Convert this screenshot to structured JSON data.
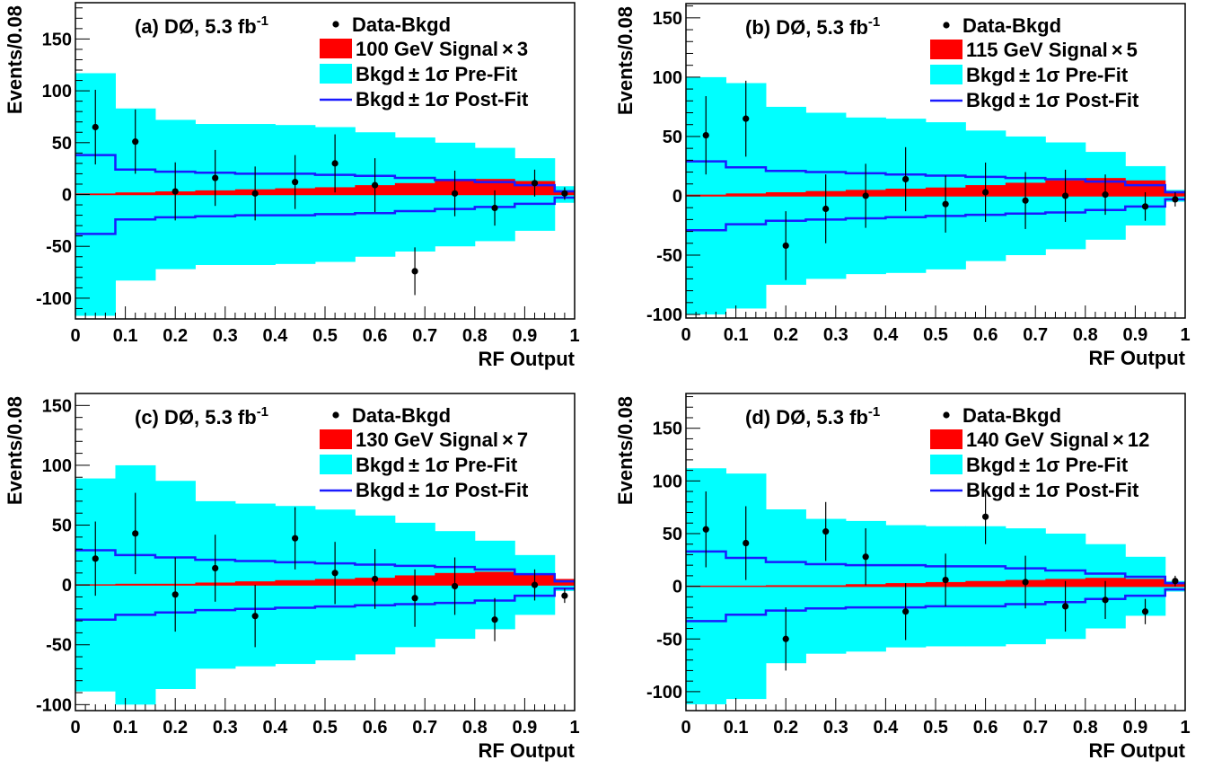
{
  "chart_data": [
    {
      "type": "bar",
      "panel_label": "(a) DØ, 5.3 fb",
      "lumi_sup": "-1",
      "xlabel": "RF Output",
      "ylabel": "Events/0.08",
      "xlim": [
        0,
        1
      ],
      "ylim": [
        -120,
        185
      ],
      "x_ticks": [
        0,
        0.1,
        0.2,
        0.3,
        0.4,
        0.5,
        0.6,
        0.7,
        0.8,
        0.9,
        1
      ],
      "x_tick_labels": [
        "0",
        "0.1",
        "0.2",
        "0.3",
        "0.4",
        "0.5",
        "0.6",
        "0.7",
        "0.8",
        "0.9",
        "1"
      ],
      "y_ticks": [
        -100,
        -50,
        0,
        50,
        100,
        150
      ],
      "y_tick_labels": [
        "-100",
        "-50",
        "0",
        "50",
        "100",
        "150"
      ],
      "legend": {
        "data": "Data-Bkgd",
        "signal": "100 GeV Signal",
        "signal_scale": "3",
        "prefit": "Bkgd",
        "prefit_suffix": "Pre-Fit",
        "postfit": "Bkgd",
        "postfit_suffix": "Post-Fit",
        "pm_sigma": "± 1σ",
        "times": "×"
      },
      "bin_edges": [
        0,
        0.08,
        0.16,
        0.24,
        0.32,
        0.4,
        0.48,
        0.56,
        0.64,
        0.72,
        0.8,
        0.88,
        0.96,
        1.0
      ],
      "prefit_band": [
        117,
        83,
        72,
        68,
        68,
        67,
        65,
        60,
        55,
        50,
        45,
        35,
        8
      ],
      "postfit_band": [
        38,
        24,
        22,
        21,
        20,
        20,
        19,
        18,
        16,
        14,
        12,
        9,
        3
      ],
      "signal": [
        1,
        2,
        3,
        4,
        5,
        6,
        7,
        9,
        11,
        13,
        15,
        13,
        4
      ],
      "data_x": [
        0.04,
        0.12,
        0.2,
        0.28,
        0.36,
        0.44,
        0.52,
        0.6,
        0.68,
        0.76,
        0.84,
        0.92,
        0.98
      ],
      "data_y": [
        65,
        51,
        3,
        16,
        1,
        12,
        30,
        9,
        -74,
        1,
        -13,
        11,
        1
      ],
      "data_err": [
        36,
        31,
        28,
        27,
        26,
        26,
        28,
        26,
        23,
        22,
        17,
        13,
        6
      ]
    },
    {
      "type": "bar",
      "panel_label": "(b) DØ, 5.3 fb",
      "lumi_sup": "-1",
      "xlabel": "RF Output",
      "ylabel": "Events/0.08",
      "xlim": [
        0,
        1
      ],
      "ylim": [
        -103,
        162
      ],
      "x_ticks": [
        0,
        0.1,
        0.2,
        0.3,
        0.4,
        0.5,
        0.6,
        0.7,
        0.8,
        0.9,
        1
      ],
      "x_tick_labels": [
        "0",
        "0.1",
        "0.2",
        "0.3",
        "0.4",
        "0.5",
        "0.6",
        "0.7",
        "0.8",
        "0.9",
        "1"
      ],
      "y_ticks": [
        -100,
        -50,
        0,
        50,
        100,
        150
      ],
      "y_tick_labels": [
        "-100",
        "-50",
        "0",
        "50",
        "100",
        "150"
      ],
      "legend": {
        "data": "Data-Bkgd",
        "signal": "115 GeV Signal",
        "signal_scale": "5",
        "prefit": "Bkgd",
        "prefit_suffix": "Pre-Fit",
        "postfit": "Bkgd",
        "postfit_suffix": "Post-Fit",
        "pm_sigma": "± 1σ",
        "times": "×"
      },
      "bin_edges": [
        0,
        0.08,
        0.16,
        0.24,
        0.32,
        0.4,
        0.48,
        0.56,
        0.64,
        0.72,
        0.8,
        0.88,
        0.96,
        1.0
      ],
      "prefit_band": [
        100,
        95,
        75,
        70,
        66,
        65,
        62,
        55,
        50,
        45,
        37,
        25,
        5
      ],
      "postfit_band": [
        29,
        24,
        21,
        20,
        19,
        18,
        17,
        16,
        15,
        14,
        12,
        9,
        3
      ],
      "signal": [
        1,
        2,
        3,
        4,
        5,
        6,
        7,
        9,
        11,
        13,
        15,
        13,
        4
      ],
      "data_x": [
        0.04,
        0.12,
        0.2,
        0.28,
        0.36,
        0.44,
        0.52,
        0.6,
        0.68,
        0.76,
        0.84,
        0.92,
        0.98
      ],
      "data_y": [
        51,
        65,
        -42,
        -11,
        0,
        14,
        -7,
        3,
        -4,
        0,
        1,
        -9,
        -3
      ],
      "data_err": [
        33,
        32,
        29,
        29,
        27,
        27,
        24,
        25,
        24,
        22,
        17,
        12,
        6
      ]
    },
    {
      "type": "bar",
      "panel_label": "(c) DØ, 5.3 fb",
      "lumi_sup": "-1",
      "xlabel": "RF Output",
      "ylabel": "Events/0.08",
      "xlim": [
        0,
        1
      ],
      "ylim": [
        -105,
        160
      ],
      "x_ticks": [
        0,
        0.1,
        0.2,
        0.3,
        0.4,
        0.5,
        0.6,
        0.7,
        0.8,
        0.9,
        1
      ],
      "x_tick_labels": [
        "0",
        "0.1",
        "0.2",
        "0.3",
        "0.4",
        "0.5",
        "0.6",
        "0.7",
        "0.8",
        "0.9",
        "1"
      ],
      "y_ticks": [
        -100,
        -50,
        0,
        50,
        100,
        150
      ],
      "y_tick_labels": [
        "-100",
        "-50",
        "0",
        "50",
        "100",
        "150"
      ],
      "legend": {
        "data": "Data-Bkgd",
        "signal": "130 GeV Signal",
        "signal_scale": "7",
        "prefit": "Bkgd",
        "prefit_suffix": "Pre-Fit",
        "postfit": "Bkgd",
        "postfit_suffix": "Post-Fit",
        "pm_sigma": "± 1σ",
        "times": "×"
      },
      "bin_edges": [
        0,
        0.08,
        0.16,
        0.24,
        0.32,
        0.4,
        0.48,
        0.56,
        0.64,
        0.72,
        0.8,
        0.88,
        0.96,
        1.0
      ],
      "prefit_band": [
        89,
        100,
        87,
        70,
        68,
        66,
        63,
        58,
        52,
        45,
        37,
        25,
        5
      ],
      "postfit_band": [
        29,
        25,
        23,
        21,
        20,
        19,
        18,
        17,
        16,
        15,
        13,
        9,
        3
      ],
      "signal": [
        0,
        1,
        1,
        2,
        3,
        4,
        5,
        6,
        8,
        10,
        11,
        9,
        5
      ],
      "data_x": [
        0.04,
        0.12,
        0.2,
        0.28,
        0.36,
        0.44,
        0.52,
        0.6,
        0.68,
        0.76,
        0.84,
        0.92,
        0.98
      ],
      "data_y": [
        22,
        43,
        -8,
        14,
        -26,
        39,
        10,
        5,
        -11,
        -1,
        -29,
        0,
        -9
      ],
      "data_err": [
        31,
        34,
        31,
        28,
        26,
        26,
        26,
        25,
        24,
        24,
        18,
        13,
        6
      ]
    },
    {
      "type": "bar",
      "panel_label": "(d) DØ, 5.3 fb",
      "lumi_sup": "-1",
      "xlabel": "RF Output",
      "ylabel": "Events/0.08",
      "xlim": [
        0,
        1
      ],
      "ylim": [
        -118,
        183
      ],
      "x_ticks": [
        0,
        0.1,
        0.2,
        0.3,
        0.4,
        0.5,
        0.6,
        0.7,
        0.8,
        0.9,
        1
      ],
      "x_tick_labels": [
        "0",
        "0.1",
        "0.2",
        "0.3",
        "0.4",
        "0.5",
        "0.6",
        "0.7",
        "0.8",
        "0.9",
        "1"
      ],
      "y_ticks": [
        -100,
        -50,
        0,
        50,
        100,
        150
      ],
      "y_tick_labels": [
        "-100",
        "-50",
        "0",
        "50",
        "100",
        "150"
      ],
      "legend": {
        "data": "Data-Bkgd",
        "signal": "140 GeV Signal",
        "signal_scale": "12",
        "prefit": "Bkgd",
        "prefit_suffix": "Pre-Fit",
        "postfit": "Bkgd",
        "postfit_suffix": "Post-Fit",
        "pm_sigma": "± 1σ",
        "times": "×"
      },
      "bin_edges": [
        0,
        0.08,
        0.16,
        0.24,
        0.32,
        0.4,
        0.48,
        0.56,
        0.64,
        0.72,
        0.8,
        0.88,
        0.96,
        1.0
      ],
      "prefit_band": [
        112,
        107,
        73,
        64,
        62,
        58,
        57,
        57,
        55,
        50,
        40,
        28,
        5
      ],
      "postfit_band": [
        33,
        27,
        23,
        21,
        20,
        20,
        19,
        19,
        17,
        15,
        12,
        9,
        3
      ],
      "signal": [
        0,
        0,
        1,
        1,
        2,
        3,
        4,
        5,
        6,
        7,
        8,
        7,
        4
      ],
      "data_x": [
        0.04,
        0.12,
        0.2,
        0.28,
        0.36,
        0.44,
        0.52,
        0.6,
        0.68,
        0.76,
        0.84,
        0.92,
        0.98
      ],
      "data_y": [
        54,
        41,
        -50,
        52,
        28,
        -24,
        6,
        66,
        4,
        -19,
        -13,
        -24,
        5
      ],
      "data_err": [
        36,
        35,
        30,
        28,
        27,
        27,
        25,
        26,
        25,
        24,
        18,
        12,
        5
      ]
    }
  ],
  "colors": {
    "prefit": "#00ffff",
    "signal": "#ff0000",
    "postfit": "#1a1aff",
    "data": "#000000",
    "axis": "#000000",
    "background": "#ffffff"
  }
}
